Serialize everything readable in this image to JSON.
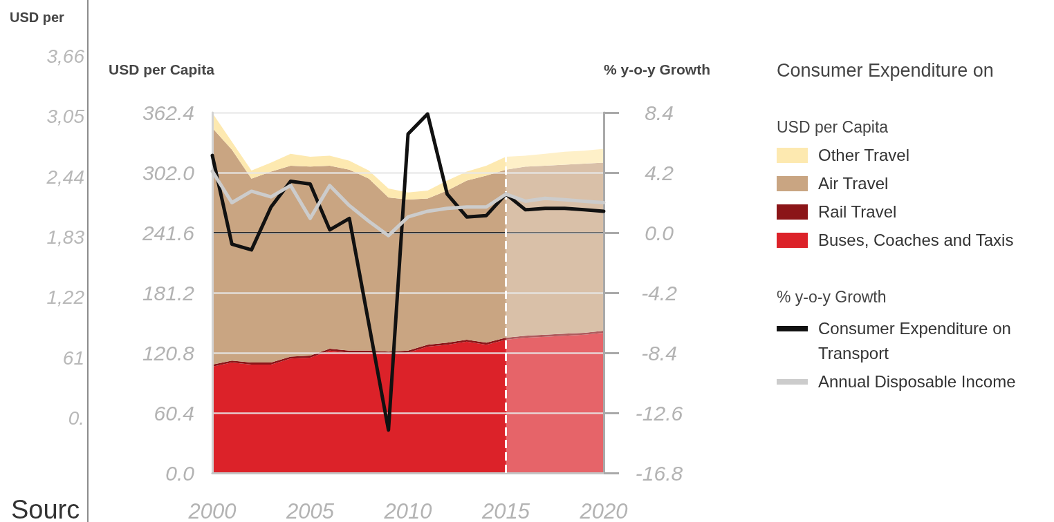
{
  "chart_data": [
    {
      "type": "other",
      "ylabel": "USD per",
      "annotations": [
        "3,66",
        "3,05",
        "2,44",
        "1,83",
        "1,22",
        "61",
        "0.",
        "Sourc"
      ]
    },
    {
      "type": "area",
      "stacked": true,
      "legend_title": "Consumer Expenditure on",
      "ylabel": "USD per Capita",
      "y2label": "% y-o-y Growth",
      "x": [
        2000,
        2001,
        2002,
        2003,
        2004,
        2005,
        2006,
        2007,
        2008,
        2009,
        2010,
        2011,
        2012,
        2013,
        2014,
        2015,
        2016,
        2017,
        2018,
        2019,
        2020
      ],
      "series": [
        {
          "name": "Buses, Coaches and Taxis",
          "color": "#dc2229",
          "values": [
            107,
            111,
            109,
            109,
            115,
            116,
            123,
            121,
            121,
            120,
            121,
            127,
            129,
            132,
            129,
            134,
            136,
            137,
            138,
            139,
            141
          ]
        },
        {
          "name": "Rail Travel",
          "color": "#8b1518",
          "values": [
            2,
            2,
            2,
            2,
            2,
            2,
            2,
            2,
            2,
            2,
            2,
            2,
            2,
            2,
            2,
            2,
            2,
            2,
            2,
            2,
            2
          ]
        },
        {
          "name": "Air Travel",
          "color": "#c9a582",
          "values": [
            238,
            212,
            185,
            192,
            192,
            190,
            184,
            182,
            173,
            155,
            152,
            147,
            153,
            160,
            168,
            169,
            170,
            170,
            170,
            170,
            169
          ]
        },
        {
          "name": "Other Travel",
          "color": "#fde9b0",
          "values": [
            15,
            8,
            8,
            9,
            12,
            10,
            10,
            9,
            8,
            9,
            7,
            8,
            10,
            9,
            10,
            13,
            11,
            12,
            13,
            13,
            14
          ]
        },
        {
          "name": "Consumer Expenditure on Transport",
          "type": "line",
          "axis": "y2",
          "color": "#111111",
          "values": [
            5.4,
            -0.8,
            -1.2,
            1.8,
            3.6,
            3.4,
            0.2,
            1.0,
            -6.4,
            -13.8,
            6.9,
            8.3,
            2.7,
            1.1,
            1.2,
            2.7,
            1.6,
            1.7,
            1.7,
            1.6,
            1.5
          ]
        },
        {
          "name": "Annual Disposable Income",
          "type": "line",
          "axis": "y2",
          "color": "#cccccc",
          "values": [
            4.3,
            2.1,
            2.9,
            2.5,
            3.3,
            1.0,
            3.3,
            1.9,
            0.8,
            -0.2,
            1.1,
            1.5,
            1.7,
            1.8,
            1.8,
            2.7,
            2.2,
            2.4,
            2.3,
            2.2,
            2.1
          ]
        }
      ],
      "xlim": [
        2000,
        2020
      ],
      "xticks": [
        2000,
        2005,
        2010,
        2015,
        2020
      ],
      "ylim": [
        0,
        362.4
      ],
      "yticks": [
        {
          "value": 0,
          "label": "0.0"
        },
        60.4,
        120.8,
        181.2,
        241.6,
        {
          "value": 302,
          "label": "302.0"
        },
        362.4
      ],
      "y2lim": [
        -16.8,
        8.4
      ],
      "y2ticks": [
        -16.8,
        -12.6,
        -8.4,
        -4.2,
        {
          "value": 0,
          "label": "0.0"
        },
        4.2,
        8.4
      ],
      "ref_lines": [
        {
          "axis": "y2",
          "value": 0,
          "color": "#333333"
        },
        {
          "axis": "x",
          "value": 2015,
          "color": "#ffffff",
          "line_style": "dashed"
        }
      ],
      "bands": [
        {
          "axis": "x",
          "from": 2015,
          "to": 2020,
          "color": "#ffffff"
        }
      ],
      "grid": "y",
      "legend": "right",
      "marker": "none"
    }
  ]
}
